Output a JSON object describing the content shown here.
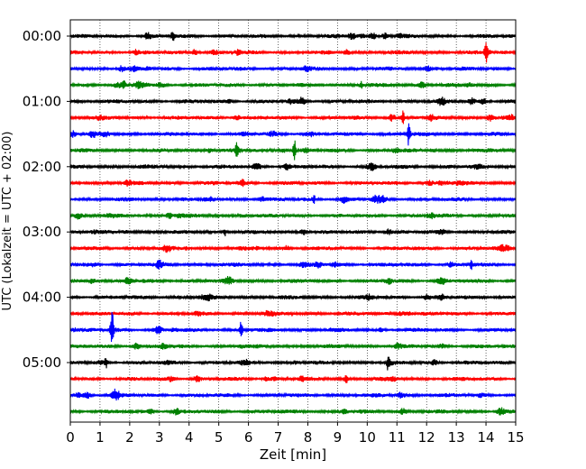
{
  "chart_data": {
    "type": "line",
    "title": "",
    "xlabel": "Zeit  [min]",
    "ylabel": "UTC (Lokalzeit = UTC + 02:00)",
    "xlim": [
      0,
      15
    ],
    "x_ticks": [
      "0",
      "1",
      "2",
      "3",
      "4",
      "5",
      "6",
      "7",
      "8",
      "9",
      "10",
      "11",
      "12",
      "13",
      "14",
      "15"
    ],
    "y_tick_labels": [
      "00:00",
      "01:00",
      "02:00",
      "03:00",
      "04:00",
      "05:00"
    ],
    "y_tick_rows": [
      0,
      4,
      8,
      12,
      16,
      20
    ],
    "trace_count": 24,
    "trace_interval_min": 15,
    "trace_colors": [
      "#000000",
      "#ff0000",
      "#0000ff",
      "#008000"
    ],
    "grid": "vertical dotted at each minute",
    "events": [
      {
        "row": 0,
        "t": 3.45,
        "amp": 6
      },
      {
        "row": 1,
        "t": 14.0,
        "amp": 9
      },
      {
        "row": 3,
        "t": 1.8,
        "amp": 5
      },
      {
        "row": 3,
        "t": 9.8,
        "amp": 4
      },
      {
        "row": 5,
        "t": 11.2,
        "amp": 7
      },
      {
        "row": 6,
        "t": 11.4,
        "amp": 13
      },
      {
        "row": 7,
        "t": 7.55,
        "amp": 11
      },
      {
        "row": 7,
        "t": 5.6,
        "amp": 6
      },
      {
        "row": 10,
        "t": 8.2,
        "amp": 5
      },
      {
        "row": 12,
        "t": 5.2,
        "amp": 5
      },
      {
        "row": 14,
        "t": 13.5,
        "amp": 6
      },
      {
        "row": 18,
        "t": 1.4,
        "amp": 24
      },
      {
        "row": 18,
        "t": 5.75,
        "amp": 9
      },
      {
        "row": 20,
        "t": 1.2,
        "amp": 6
      },
      {
        "row": 20,
        "t": 10.7,
        "amp": 7
      },
      {
        "row": 21,
        "t": 9.3,
        "amp": 5
      }
    ]
  }
}
